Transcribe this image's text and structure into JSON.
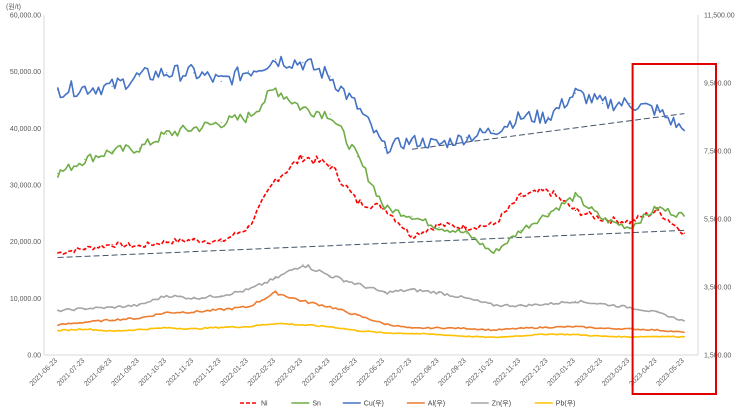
{
  "header_text": "(원/t)",
  "chart_data": {
    "type": "line",
    "title": "",
    "xlabel": "",
    "ylabel": "",
    "ylim_left": [
      0,
      60000
    ],
    "ylim_right": [
      1500,
      11500
    ],
    "grid": false,
    "legend_placement": "bottom",
    "x": [
      "2021-06-23",
      "2021-07-23",
      "2021-08-23",
      "2021-09-23",
      "2021-10-23",
      "2021-11-23",
      "2021-12-23",
      "2022-01-23",
      "2022-02-23",
      "2022-03-23",
      "2022-04-23",
      "2022-05-23",
      "2022-06-23",
      "2022-07-23",
      "2022-08-23",
      "2022-09-23",
      "2022-10-23",
      "2022-11-23",
      "2022-12-23",
      "2023-01-23",
      "2023-02-23",
      "2023-03-23",
      "2023-04-23",
      "2023-05-23"
    ],
    "left_ticks": [
      "0.00",
      "10,000.00",
      "20,000.00",
      "30,000.00",
      "40,000.00",
      "50,000.00",
      "60,000.00"
    ],
    "right_ticks": [
      "1,500.00",
      "3,500.00",
      "5,500.00",
      "7,500.00",
      "9,500.00",
      "11,500.00"
    ],
    "series": [
      {
        "name": "Ni",
        "axis": "left",
        "color": "#FF0000",
        "dash": true,
        "values": [
          18000,
          18800,
          19500,
          19200,
          20000,
          20300,
          20000,
          22500,
          31000,
          35000,
          33500,
          27000,
          26000,
          21000,
          23000,
          22500,
          23000,
          28000,
          29000,
          25500,
          24000,
          23500,
          25500,
          21500
        ]
      },
      {
        "name": "Sn",
        "axis": "left",
        "color": "#70AD47",
        "dash": false,
        "values": [
          32000,
          34500,
          36000,
          36500,
          39000,
          40000,
          41000,
          42000,
          47000,
          43500,
          42500,
          35000,
          26000,
          24500,
          22500,
          21500,
          18000,
          22000,
          25000,
          28000,
          24000,
          22500,
          26000,
          24500
        ]
      },
      {
        "name": "Cu(우)",
        "axis": "right",
        "color": "#4472C4",
        "dash": false,
        "values": [
          9300,
          9350,
          9400,
          9700,
          9800,
          9800,
          9550,
          9850,
          10200,
          10100,
          9700,
          8800,
          7600,
          7800,
          7700,
          7900,
          8100,
          8500,
          8500,
          9200,
          8900,
          8900,
          8700,
          8100
        ]
      },
      {
        "name": "Al(우)",
        "axis": "left",
        "color": "#ED7D31",
        "dash": false,
        "values": [
          5300,
          5800,
          6200,
          6500,
          7500,
          7600,
          8000,
          8500,
          11000,
          9500,
          8500,
          7000,
          5500,
          4700,
          4800,
          4700,
          4400,
          4700,
          4900,
          5000,
          4700,
          4600,
          4400,
          4000
        ]
      },
      {
        "name": "Zn(우)",
        "axis": "left",
        "color": "#A5A5A5",
        "dash": false,
        "values": [
          7800,
          8200,
          8400,
          8800,
          10500,
          10000,
          10500,
          11500,
          13500,
          16000,
          14000,
          12500,
          11000,
          11500,
          11000,
          10000,
          8800,
          8700,
          9000,
          9500,
          9000,
          8400,
          7500,
          6000
        ]
      },
      {
        "name": "Pb(우)",
        "axis": "left",
        "color": "#FFC000",
        "dash": false,
        "values": [
          4300,
          4600,
          4200,
          4500,
          4800,
          4600,
          4900,
          5000,
          5600,
          5300,
          5000,
          4300,
          3900,
          3800,
          3600,
          3300,
          3100,
          3400,
          3700,
          3600,
          3300,
          3200,
          3300,
          3200
        ]
      }
    ],
    "trendlines": [
      {
        "axis": "left",
        "color": "#44546A",
        "from": [
          "2021-06-23",
          17200
        ],
        "to": [
          "2023-05-23",
          22000
        ]
      },
      {
        "axis": "right",
        "color": "#44546A",
        "from": [
          "2022-07-23",
          7550
        ],
        "to": [
          "2023-05-23",
          8600
        ]
      }
    ],
    "highlight_box": {
      "from": "2023-04-23",
      "to": "2023-05-23",
      "color": "#E00000"
    }
  }
}
